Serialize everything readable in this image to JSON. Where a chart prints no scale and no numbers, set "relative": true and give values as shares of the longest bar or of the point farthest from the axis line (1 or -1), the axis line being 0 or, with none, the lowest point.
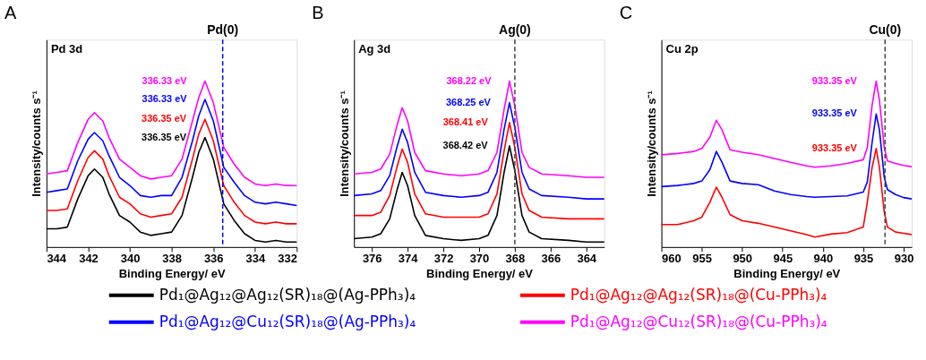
{
  "chart_data": [
    {
      "type": "line",
      "title": "A",
      "subtitle": "Pd 3d",
      "xlabel": "Binding Energy/ eV",
      "ylabel": "Intensity/counts s⁻¹",
      "relative": true,
      "legend": "bottom",
      "xlim": [
        344,
        332
      ],
      "xticks": [
        344,
        342,
        340,
        338,
        336,
        334,
        332
      ],
      "x": [
        344,
        343.5,
        343,
        342.5,
        342,
        341.7,
        341.3,
        341,
        340.5,
        340,
        339.5,
        339,
        338.5,
        338,
        337.5,
        337,
        336.7,
        336.4,
        336,
        335.5,
        335,
        334.5,
        334,
        333.5,
        333,
        332.5,
        332
      ],
      "series": [
        {
          "name": "Pd₁@Ag₁₂@Ag₁₂(SR)₁₈@(Ag-PPh₃)₄",
          "color": "#000000",
          "values": [
            0.11,
            0.11,
            0.12,
            0.29,
            0.43,
            0.47,
            0.42,
            0.32,
            0.19,
            0.15,
            0.09,
            0.07,
            0.08,
            0.09,
            0.19,
            0.42,
            0.57,
            0.66,
            0.53,
            0.26,
            0.16,
            0.08,
            0.04,
            0.03,
            0.04,
            0.03,
            0.03
          ]
        },
        {
          "name": "Pd₁@Ag₁₂@Ag₁₂(SR)₁₈@(Cu-PPh₃)₄",
          "color": "#ff0000",
          "values": [
            0.22,
            0.22,
            0.23,
            0.4,
            0.54,
            0.58,
            0.53,
            0.43,
            0.3,
            0.26,
            0.2,
            0.18,
            0.19,
            0.2,
            0.3,
            0.53,
            0.68,
            0.77,
            0.64,
            0.37,
            0.27,
            0.19,
            0.15,
            0.14,
            0.15,
            0.14,
            0.14
          ]
        },
        {
          "name": "Pd₁@Ag₁₂@Cu₁₂(SR)₁₈@(Ag-PPh₃)₄",
          "color": "#0000ff",
          "values": [
            0.33,
            0.34,
            0.35,
            0.52,
            0.65,
            0.69,
            0.64,
            0.55,
            0.42,
            0.37,
            0.31,
            0.3,
            0.31,
            0.31,
            0.42,
            0.64,
            0.79,
            0.89,
            0.76,
            0.48,
            0.39,
            0.31,
            0.27,
            0.26,
            0.27,
            0.26,
            0.25
          ]
        },
        {
          "name": "Pd₁@Ag₁₂@Cu₁₂(SR)₁₈@(Cu-PPh₃)₄",
          "color": "#ff00ff",
          "values": [
            0.44,
            0.45,
            0.46,
            0.63,
            0.77,
            0.81,
            0.76,
            0.66,
            0.53,
            0.48,
            0.43,
            0.41,
            0.42,
            0.43,
            0.53,
            0.76,
            0.9,
            1.0,
            0.87,
            0.6,
            0.5,
            0.42,
            0.38,
            0.37,
            0.38,
            0.37,
            0.37
          ]
        }
      ],
      "ref_lines": [
        {
          "axis": "x",
          "value": 335.55,
          "label": "Pd(0)",
          "color": "#0000ff",
          "line_style": "dashed"
        }
      ],
      "annotations": [
        {
          "text": "336.35 eV",
          "x": 336.35,
          "y": 0.66
        },
        {
          "text": "336.35 eV",
          "x": 336.35,
          "y": 0.77
        },
        {
          "text": "336.33 eV",
          "x": 336.33,
          "y": 0.89
        },
        {
          "text": "336.33 eV",
          "x": 336.33,
          "y": 1.0
        }
      ]
    },
    {
      "type": "line",
      "title": "B",
      "subtitle": "Ag 3d",
      "xlabel": "Binding Energy/ eV",
      "ylabel": "Intensity/counts s⁻¹",
      "relative": true,
      "xlim": [
        377,
        363
      ],
      "xticks": [
        376,
        374,
        372,
        370,
        368,
        366,
        364
      ],
      "x": [
        377,
        376,
        375.5,
        375,
        374.6,
        374.3,
        374,
        373.6,
        373,
        372,
        371,
        370,
        369.5,
        369,
        368.6,
        368.3,
        368,
        367.6,
        367.2,
        366.5,
        365,
        364,
        363
      ],
      "series": [
        {
          "color": "#000000",
          "values": [
            0.05,
            0.06,
            0.08,
            0.17,
            0.34,
            0.45,
            0.37,
            0.19,
            0.07,
            0.05,
            0.04,
            0.05,
            0.07,
            0.19,
            0.45,
            0.61,
            0.46,
            0.19,
            0.09,
            0.05,
            0.04,
            0.03,
            0.03
          ]
        },
        {
          "color": "#ff0000",
          "values": [
            0.19,
            0.19,
            0.21,
            0.31,
            0.48,
            0.59,
            0.51,
            0.32,
            0.2,
            0.18,
            0.18,
            0.18,
            0.2,
            0.32,
            0.58,
            0.75,
            0.6,
            0.32,
            0.22,
            0.18,
            0.17,
            0.17,
            0.17
          ]
        },
        {
          "color": "#0000ff",
          "values": [
            0.31,
            0.32,
            0.34,
            0.43,
            0.6,
            0.71,
            0.63,
            0.45,
            0.33,
            0.31,
            0.3,
            0.31,
            0.33,
            0.45,
            0.71,
            0.87,
            0.72,
            0.45,
            0.35,
            0.31,
            0.3,
            0.29,
            0.29
          ]
        },
        {
          "color": "#ff00ff",
          "values": [
            0.44,
            0.45,
            0.47,
            0.56,
            0.73,
            0.84,
            0.76,
            0.57,
            0.46,
            0.44,
            0.43,
            0.44,
            0.46,
            0.57,
            0.83,
            1.0,
            0.85,
            0.57,
            0.48,
            0.44,
            0.43,
            0.42,
            0.42
          ]
        }
      ],
      "ref_lines": [
        {
          "axis": "x",
          "value": 368.0,
          "label": "Ag(0)",
          "color": "#444444",
          "line_style": "dashed"
        }
      ],
      "annotations": [
        {
          "text": "368.42 eV",
          "x": 368.42,
          "y": 0.61
        },
        {
          "text": "368.41 eV",
          "x": 368.41,
          "y": 0.75
        },
        {
          "text": "368.25 eV",
          "x": 368.25,
          "y": 0.87
        },
        {
          "text": "368.22 eV",
          "x": 368.22,
          "y": 1.0
        }
      ]
    },
    {
      "type": "line",
      "title": "C",
      "subtitle": "Cu 2p",
      "xlabel": "Binding Energy/ eV",
      "ylabel": "Intensity/counts s⁻¹",
      "relative": true,
      "xlim": [
        960,
        929
      ],
      "xticks": [
        960,
        955,
        950,
        945,
        940,
        935,
        930
      ],
      "x": [
        960,
        958,
        956,
        955,
        954,
        953.2,
        952.5,
        951.5,
        950,
        948,
        946,
        944,
        942,
        941,
        939,
        937,
        935,
        934.5,
        933.9,
        933.4,
        933,
        932.4,
        932,
        931,
        930,
        929
      ],
      "series": [
        {
          "color": "#ff0000",
          "values": [
            0.135,
            0.135,
            0.158,
            0.18,
            0.27,
            0.361,
            0.3,
            0.195,
            0.158,
            0.143,
            0.12,
            0.098,
            0.075,
            0.06,
            0.078,
            0.087,
            0.12,
            0.27,
            0.481,
            0.594,
            0.481,
            0.21,
            0.12,
            0.09,
            0.083,
            0.075
          ]
        },
        {
          "color": "#0000ff",
          "values": [
            0.364,
            0.371,
            0.383,
            0.398,
            0.466,
            0.576,
            0.511,
            0.398,
            0.383,
            0.376,
            0.338,
            0.316,
            0.304,
            0.3,
            0.304,
            0.308,
            0.331,
            0.391,
            0.632,
            0.802,
            0.707,
            0.421,
            0.346,
            0.316,
            0.298,
            0.29
          ]
        },
        {
          "color": "#ff00ff",
          "values": [
            0.556,
            0.564,
            0.576,
            0.594,
            0.662,
            0.764,
            0.707,
            0.586,
            0.571,
            0.556,
            0.534,
            0.511,
            0.489,
            0.481,
            0.489,
            0.504,
            0.526,
            0.6,
            0.857,
            1.0,
            0.887,
            0.6,
            0.519,
            0.504,
            0.492,
            0.484
          ]
        }
      ],
      "ref_lines": [
        {
          "axis": "x",
          "value": 932.3,
          "label": "Cu(0)",
          "color": "#444444",
          "line_style": "dashed"
        }
      ],
      "annotations": [
        {
          "text": "933.35 eV",
          "x": 933.35,
          "y": 0.594
        },
        {
          "text": "933.35 eV",
          "x": 933.35,
          "y": 0.802
        },
        {
          "text": "933.35 eV",
          "x": 933.35,
          "y": 1.0
        }
      ]
    }
  ]
}
